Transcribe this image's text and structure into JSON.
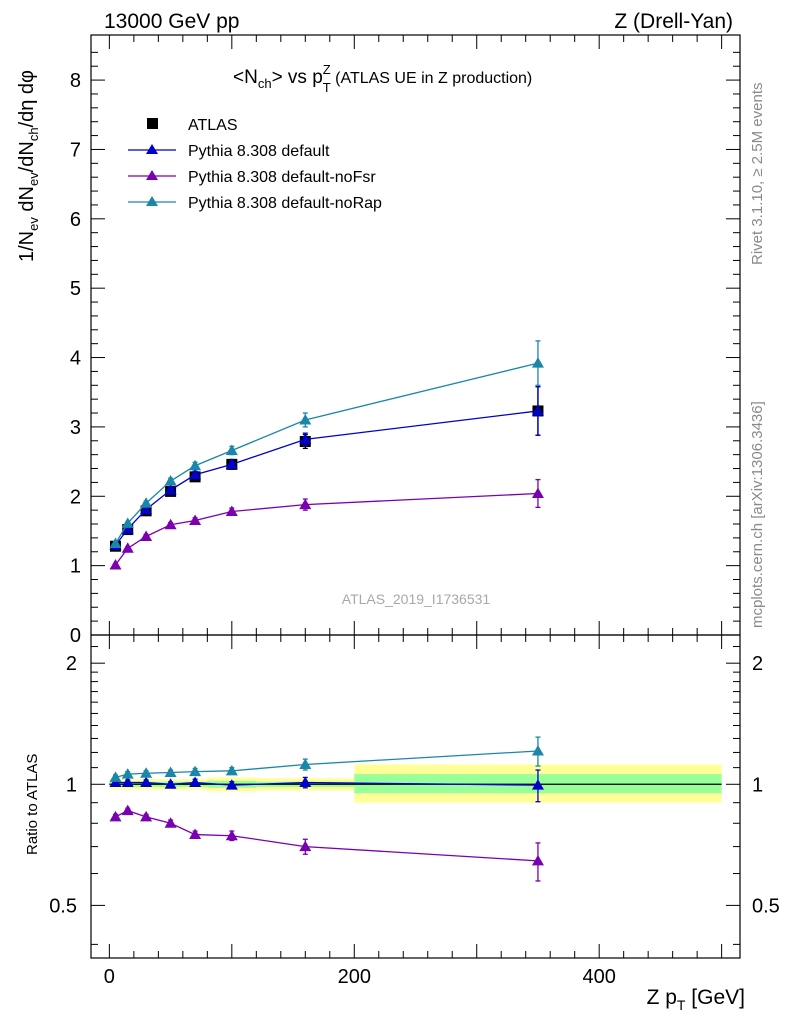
{
  "header": {
    "left": "13000 GeV pp",
    "right": "Z (Drell-Yan)"
  },
  "side_labels": {
    "rivet": "Rivet 3.1.10, ≥ 2.5M events",
    "mcplots": "mcplots.cern.ch [arXiv:1306.3436]"
  },
  "watermark": "ATLAS_2019_I1736531",
  "colors": {
    "atlas": "#000000",
    "default": "#0000cc",
    "noFsr": "#7a00b0",
    "noRap": "#1a86a8",
    "band_outer": "#ffff99",
    "band_inner": "#99ff99"
  },
  "chart_data": [
    {
      "type": "scatter",
      "title": "<N_ch> vs p_T^Z (ATLAS UE in Z production)",
      "ylabel": "1/N_ev dN_ev/dN_ch/dη dφ",
      "xlim": [
        -15,
        515
      ],
      "ylim": [
        0,
        8.65
      ],
      "yticks": [
        0,
        1,
        2,
        3,
        4,
        5,
        6,
        7,
        8
      ],
      "legend_position": "top-left",
      "x": [
        5,
        15,
        30,
        50,
        70,
        100,
        160,
        350
      ],
      "series": [
        {
          "name": "ATLAS",
          "marker": "square",
          "color": "#000000",
          "values": [
            1.28,
            1.52,
            1.79,
            2.07,
            2.28,
            2.46,
            2.79,
            3.23
          ],
          "errors": [
            0.04,
            0.04,
            0.05,
            0.05,
            0.06,
            0.07,
            0.1,
            0.35
          ]
        },
        {
          "name": "Pythia 8.308 default",
          "marker": "triangle",
          "color": "#0000cc",
          "values": [
            1.29,
            1.53,
            1.81,
            2.09,
            2.31,
            2.46,
            2.82,
            3.23
          ],
          "errors": [
            0.02,
            0.02,
            0.03,
            0.04,
            0.05,
            0.06,
            0.09,
            0.35
          ]
        },
        {
          "name": "Pythia 8.308 default-noFsr",
          "marker": "triangle",
          "color": "#7a00b0",
          "values": [
            1.01,
            1.25,
            1.42,
            1.59,
            1.65,
            1.78,
            1.88,
            2.04
          ],
          "errors": [
            0.02,
            0.02,
            0.03,
            0.03,
            0.04,
            0.05,
            0.08,
            0.2
          ]
        },
        {
          "name": "Pythia 8.308 default-noRap",
          "marker": "triangle",
          "color": "#1a86a8",
          "values": [
            1.32,
            1.61,
            1.9,
            2.22,
            2.44,
            2.66,
            3.1,
            3.92
          ],
          "errors": [
            0.02,
            0.02,
            0.03,
            0.04,
            0.05,
            0.06,
            0.1,
            0.32
          ]
        }
      ]
    },
    {
      "type": "scatter",
      "xlabel": "Z p_T [GeV]",
      "ylabel": "Ratio to ATLAS",
      "xlim": [
        -15,
        515
      ],
      "ylim": [
        0.37,
        2.35
      ],
      "yscale": "log",
      "yticks": [
        0.5,
        1,
        2
      ],
      "xticks": [
        0,
        200,
        400
      ],
      "x": [
        5,
        15,
        30,
        50,
        70,
        100,
        160,
        350
      ],
      "bands": [
        {
          "x": [
            0,
            10,
            20,
            40,
            60,
            80,
            120,
            200,
            500
          ],
          "outer": [
            [
              0.97,
              1.03
            ],
            [
              0.97,
              1.03
            ],
            [
              0.97,
              1.03
            ],
            [
              0.97,
              1.03
            ],
            [
              0.97,
              1.03
            ],
            [
              0.96,
              1.04
            ],
            [
              0.965,
              1.035
            ],
            [
              0.9,
              1.12
            ]
          ],
          "inner": [
            [
              0.985,
              1.015
            ],
            [
              0.985,
              1.015
            ],
            [
              0.985,
              1.015
            ],
            [
              0.985,
              1.015
            ],
            [
              0.985,
              1.015
            ],
            [
              0.98,
              1.02
            ],
            [
              0.985,
              1.015
            ],
            [
              0.95,
              1.06
            ]
          ]
        }
      ],
      "series": [
        {
          "name": "Pythia 8.308 default",
          "color": "#0000cc",
          "values": [
            1.01,
            1.01,
            1.01,
            1.0,
            1.01,
            0.995,
            1.01,
            0.995
          ],
          "errors": [
            0.015,
            0.015,
            0.015,
            0.015,
            0.02,
            0.02,
            0.03,
            0.09
          ]
        },
        {
          "name": "Pythia 8.308 default-noFsr",
          "color": "#7a00b0",
          "values": [
            0.83,
            0.86,
            0.83,
            0.8,
            0.75,
            0.745,
            0.7,
            0.645
          ],
          "errors": [
            0.012,
            0.012,
            0.012,
            0.015,
            0.015,
            0.02,
            0.03,
            0.07
          ]
        },
        {
          "name": "Pythia 8.308 default-noRap",
          "color": "#1a86a8",
          "values": [
            1.04,
            1.06,
            1.065,
            1.07,
            1.075,
            1.08,
            1.12,
            1.21
          ],
          "errors": [
            0.015,
            0.015,
            0.015,
            0.015,
            0.02,
            0.02,
            0.035,
            0.1
          ]
        }
      ]
    }
  ]
}
